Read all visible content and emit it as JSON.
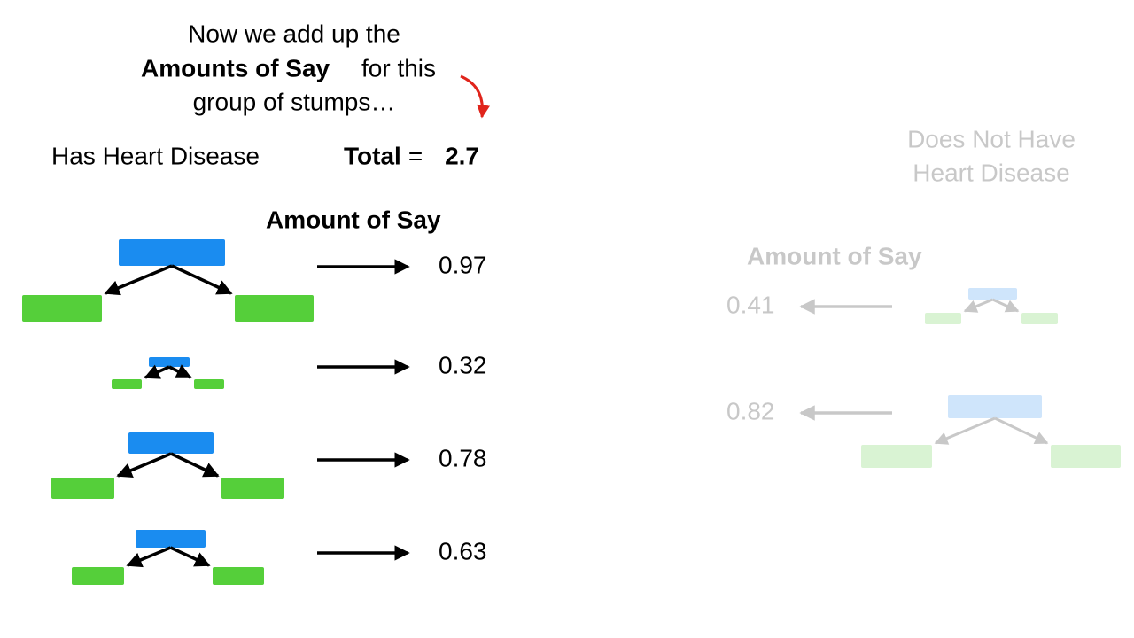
{
  "caption": {
    "line1": "Now we add up the",
    "line2_bold": "Amounts of Say",
    "line2_rest": "for this",
    "line3": "group of stumps…"
  },
  "left": {
    "title": "Has Heart Disease",
    "total": {
      "label": "Total",
      "sign": "=",
      "value": 2.7
    },
    "header": "Amount of Say",
    "amounts": [
      0.97,
      0.32,
      0.78,
      0.63
    ]
  },
  "right": {
    "title_line1": "Does Not Have",
    "title_line2": "Heart Disease",
    "header": "Amount of Say",
    "amounts": [
      0.41,
      0.82
    ]
  }
}
